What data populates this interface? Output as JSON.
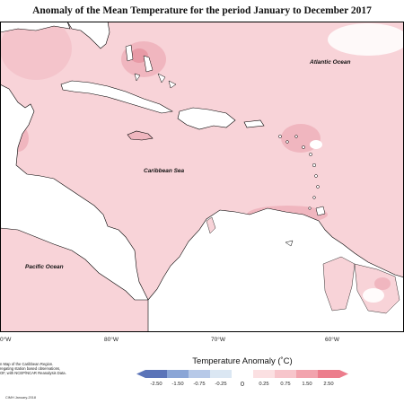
{
  "title": "Anomaly of the Mean Temperature for the period January to December 2017",
  "labels": {
    "atlantic": "Atlantic Ocean",
    "caribbean": "Caribbean Sea",
    "pacific": "Pacific Ocean"
  },
  "longitudes": [
    "0°W",
    "80°W",
    "70°W",
    "60°W"
  ],
  "notes": [
    "n Map of the Caribbean Region.",
    "regating station based observations,",
    "OF, with NCEP/NCAR Reanalysis Data."
  ],
  "credit": "CIMH January-2018",
  "legend": {
    "title": "Temperature Anomaly (˚C)",
    "ticks": [
      "-2.50",
      "-1.50",
      "-0.75",
      "-0.25",
      "0",
      "0.25",
      "0.75",
      "1.50",
      "2.50"
    ],
    "colors": [
      "#5b74b8",
      "#8aa5d6",
      "#b7c9e8",
      "#dbe7f3",
      "#ffffff",
      "#fbe0e2",
      "#f7c5cb",
      "#f2a3ad",
      "#ec7d8c"
    ]
  },
  "fill_colors": {
    "sea_anomaly": "#f8d3d8",
    "warm_patch": "#f0b6bf",
    "hot_patch": "#e89aa6",
    "land": "#ffffff",
    "coast": "#000000"
  }
}
